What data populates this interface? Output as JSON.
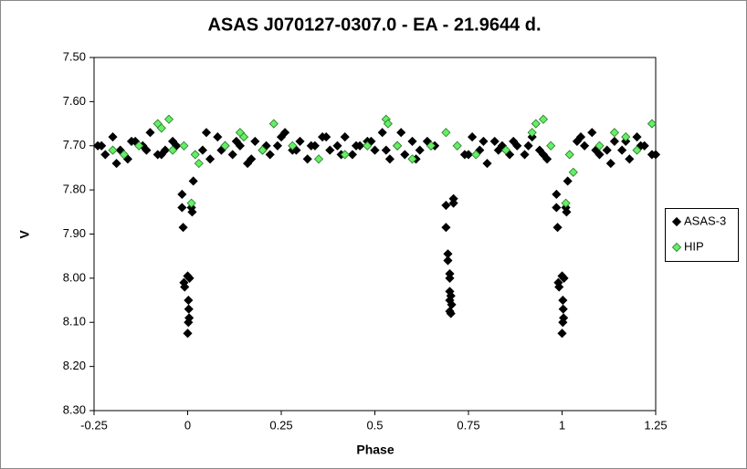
{
  "chart_data": {
    "type": "scatter",
    "title": "ASAS J070127-0307.0  - EA - 21.9644  d.",
    "x_label": "Phase",
    "y_label": "V",
    "xlim": [
      -0.25,
      1.25
    ],
    "xticks": [
      -0.25,
      0,
      0.25,
      0.5,
      0.75,
      1,
      1.25
    ],
    "ylim": [
      7.5,
      8.3
    ],
    "y_inverted": true,
    "yticks": [
      {
        "value": 7.5,
        "label": "7.50"
      },
      {
        "value": 7.6,
        "label": "7.60"
      },
      {
        "value": 7.7,
        "label": "7.70"
      },
      {
        "value": 7.8,
        "label": "7.80"
      },
      {
        "value": 7.9,
        "label": "7.90"
      },
      {
        "value": 8.0,
        "label": "8.00"
      },
      {
        "value": 8.1,
        "label": "8.10"
      },
      {
        "value": 8.2,
        "label": "8.20"
      },
      {
        "value": 8.3,
        "label": "8.30"
      }
    ],
    "legend": "right",
    "series": [
      {
        "name": "ASAS-3",
        "color": "#000000",
        "x": [
          -0.24,
          -0.22,
          -0.2,
          -0.18,
          -0.16,
          -0.14,
          -0.12,
          -0.1,
          -0.08,
          -0.06,
          -0.04,
          0.04,
          0.06,
          0.08,
          0.1,
          0.12,
          0.14,
          0.16,
          0.18,
          0.2,
          0.22,
          0.24,
          0.26,
          0.28,
          0.3,
          0.32,
          0.34,
          0.36,
          0.38,
          0.4,
          0.42,
          0.44,
          0.46,
          0.48,
          0.5,
          0.52,
          0.54,
          0.56,
          0.58,
          0.6,
          0.62,
          0.64,
          0.66,
          0.74,
          0.76,
          0.78,
          0.8,
          0.82,
          0.84,
          0.86,
          0.88,
          0.9,
          0.92,
          0.94,
          0.96,
          1.04,
          1.06,
          1.08,
          1.1,
          1.12,
          1.14,
          1.16,
          1.18,
          1.2,
          1.22,
          1.24,
          -0.23,
          -0.19,
          -0.15,
          -0.11,
          -0.07,
          -0.03,
          0.05,
          0.09,
          0.13,
          0.17,
          0.21,
          0.25,
          0.29,
          0.33,
          0.37,
          0.41,
          0.45,
          0.49,
          0.53,
          0.57,
          0.61,
          0.65,
          0.75,
          0.79,
          0.83,
          0.87,
          0.91,
          0.95,
          1.05,
          1.09,
          1.13,
          1.17,
          1.21,
          1.25,
          -0.015,
          -0.015,
          -0.012,
          -0.01,
          -0.008,
          0.0,
          0.005,
          0.002,
          0.003,
          0.004,
          0.002,
          0.0,
          0.01,
          0.012,
          0.015,
          0.69,
          0.69,
          0.695,
          0.695,
          0.7,
          0.7,
          0.7,
          0.703,
          0.7,
          0.705,
          0.7,
          0.703,
          0.71,
          0.71,
          0.985,
          0.985,
          0.988,
          0.99,
          0.992,
          1.0,
          1.005,
          1.002,
          1.003,
          1.004,
          1.002,
          1.0,
          1.01,
          1.012,
          1.015
        ],
        "values": [
          7.7,
          7.72,
          7.68,
          7.71,
          7.73,
          7.69,
          7.7,
          7.67,
          7.72,
          7.71,
          7.69,
          7.71,
          7.73,
          7.68,
          7.7,
          7.72,
          7.7,
          7.74,
          7.69,
          7.71,
          7.72,
          7.7,
          7.67,
          7.71,
          7.69,
          7.73,
          7.7,
          7.68,
          7.71,
          7.7,
          7.68,
          7.72,
          7.7,
          7.69,
          7.71,
          7.67,
          7.73,
          7.7,
          7.72,
          7.69,
          7.71,
          7.69,
          7.7,
          7.72,
          7.68,
          7.71,
          7.74,
          7.69,
          7.7,
          7.72,
          7.7,
          7.72,
          7.68,
          7.71,
          7.73,
          7.69,
          7.7,
          7.67,
          7.72,
          7.71,
          7.69,
          7.71,
          7.73,
          7.68,
          7.7,
          7.72,
          7.7,
          7.74,
          7.69,
          7.71,
          7.72,
          7.7,
          7.67,
          7.71,
          7.69,
          7.73,
          7.7,
          7.68,
          7.71,
          7.7,
          7.68,
          7.72,
          7.7,
          7.69,
          7.71,
          7.67,
          7.73,
          7.7,
          7.72,
          7.69,
          7.71,
          7.69,
          7.7,
          7.72,
          7.68,
          7.71,
          7.74,
          7.69,
          7.7,
          7.72,
          7.81,
          7.84,
          7.885,
          8.01,
          8.02,
          7.995,
          8.0,
          8.05,
          8.07,
          8.09,
          8.1,
          8.125,
          7.84,
          7.85,
          7.78,
          7.835,
          7.885,
          7.945,
          7.96,
          7.99,
          8.0,
          8.03,
          8.04,
          8.05,
          8.06,
          8.075,
          8.08,
          7.82,
          7.83,
          7.81,
          7.84,
          7.885,
          8.01,
          8.02,
          7.995,
          8.0,
          8.05,
          8.07,
          8.09,
          8.1,
          8.125,
          7.84,
          7.85,
          7.78
        ]
      },
      {
        "name": "HIP",
        "color": "#66ee66",
        "x": [
          -0.2,
          -0.17,
          -0.13,
          -0.08,
          -0.07,
          -0.05,
          -0.04,
          -0.01,
          0.01,
          0.02,
          0.03,
          0.1,
          0.14,
          0.15,
          0.2,
          0.23,
          0.28,
          0.35,
          0.42,
          0.48,
          0.53,
          0.535,
          0.56,
          0.6,
          0.65,
          0.69,
          0.72,
          0.77,
          0.85,
          0.92,
          0.93,
          0.95,
          0.97,
          1.01,
          1.02,
          1.03,
          1.1,
          1.14,
          1.17,
          1.2,
          1.24
        ],
        "values": [
          7.71,
          7.72,
          7.7,
          7.65,
          7.66,
          7.64,
          7.71,
          7.7,
          7.83,
          7.72,
          7.74,
          7.7,
          7.67,
          7.68,
          7.71,
          7.65,
          7.7,
          7.73,
          7.72,
          7.7,
          7.64,
          7.65,
          7.7,
          7.73,
          7.7,
          7.67,
          7.7,
          7.72,
          7.71,
          7.67,
          7.65,
          7.64,
          7.7,
          7.83,
          7.72,
          7.76,
          7.7,
          7.67,
          7.68,
          7.71,
          7.65
        ]
      }
    ]
  }
}
